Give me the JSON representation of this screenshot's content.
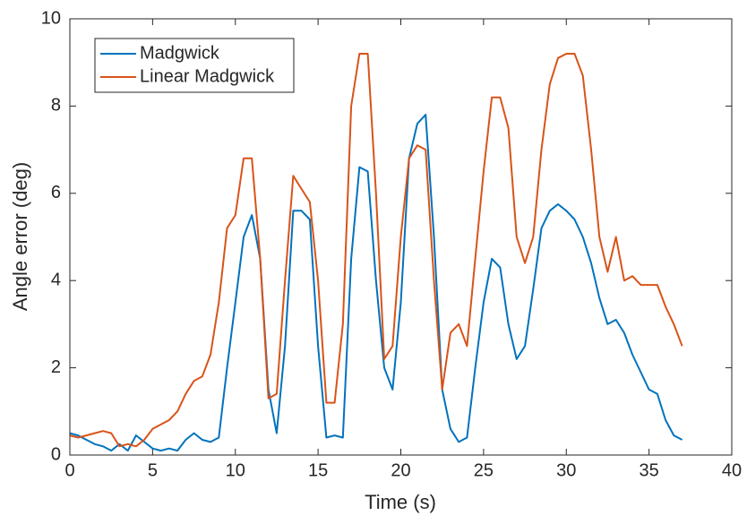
{
  "chart_data": {
    "type": "line",
    "xlabel": "Time (s)",
    "ylabel": "Angle error (deg)",
    "x": [
      0,
      0.5,
      1,
      1.5,
      2,
      2.5,
      3,
      3.5,
      4,
      4.5,
      5,
      5.5,
      6,
      6.5,
      7,
      7.5,
      8,
      8.5,
      9,
      9.5,
      10,
      10.5,
      11,
      11.5,
      12,
      12.5,
      13,
      13.5,
      14,
      14.5,
      15,
      15.5,
      16,
      16.5,
      17,
      17.5,
      18,
      18.5,
      19,
      19.5,
      20,
      20.5,
      21,
      21.5,
      22,
      22.5,
      23,
      23.5,
      24,
      24.5,
      25,
      25.5,
      26,
      26.5,
      27,
      27.5,
      28,
      28.5,
      29,
      29.5,
      30,
      30.5,
      31,
      31.5,
      32,
      32.5,
      33,
      33.5,
      34,
      34.5,
      35,
      35.5,
      36,
      36.5,
      37
    ],
    "series": [
      {
        "name": "Madgwick",
        "color": "#0072bd",
        "values": [
          0.5,
          0.45,
          0.35,
          0.25,
          0.2,
          0.1,
          0.25,
          0.1,
          0.45,
          0.3,
          0.15,
          0.1,
          0.15,
          0.1,
          0.35,
          0.5,
          0.35,
          0.3,
          0.4,
          2.0,
          3.5,
          5.0,
          5.5,
          4.5,
          1.5,
          0.5,
          2.5,
          5.6,
          5.6,
          5.4,
          2.5,
          0.4,
          0.45,
          0.4,
          4.5,
          6.6,
          6.5,
          4.0,
          2.0,
          1.5,
          3.5,
          6.8,
          7.6,
          7.8,
          5.0,
          1.5,
          0.6,
          0.3,
          0.4,
          2.0,
          3.5,
          4.5,
          4.3,
          3.0,
          2.2,
          2.5,
          3.8,
          5.2,
          5.6,
          5.75,
          5.6,
          5.4,
          5.0,
          4.4,
          3.6,
          3.0,
          3.1,
          2.8,
          2.3,
          1.9,
          1.5,
          1.4,
          0.8,
          0.45,
          0.35
        ]
      },
      {
        "name": "Linear Madgwick",
        "color": "#d95319",
        "values": [
          0.45,
          0.4,
          0.45,
          0.5,
          0.55,
          0.5,
          0.2,
          0.25,
          0.2,
          0.35,
          0.6,
          0.7,
          0.8,
          1.0,
          1.4,
          1.7,
          1.8,
          2.3,
          3.5,
          5.2,
          5.5,
          6.8,
          6.8,
          4.5,
          1.3,
          1.4,
          4.0,
          6.4,
          6.1,
          5.8,
          4.0,
          1.2,
          1.2,
          3.0,
          8.0,
          9.2,
          9.2,
          6.0,
          2.2,
          2.5,
          5.0,
          6.8,
          7.1,
          7.0,
          4.0,
          1.5,
          2.8,
          3.0,
          2.5,
          4.5,
          6.5,
          8.2,
          8.2,
          7.5,
          5.0,
          4.4,
          5.0,
          7.0,
          8.5,
          9.1,
          9.2,
          9.2,
          8.7,
          7.0,
          5.0,
          4.2,
          5.0,
          4.0,
          4.1,
          3.9,
          3.9,
          3.9,
          3.4,
          3.0,
          2.5
        ]
      }
    ],
    "xlim": [
      0,
      40
    ],
    "xticks": [
      0,
      5,
      10,
      15,
      20,
      25,
      30,
      35,
      40
    ],
    "ylim": [
      0,
      10
    ],
    "yticks": [
      0,
      2,
      4,
      6,
      8,
      10
    ],
    "legend": "upper-left",
    "grid": false
  }
}
